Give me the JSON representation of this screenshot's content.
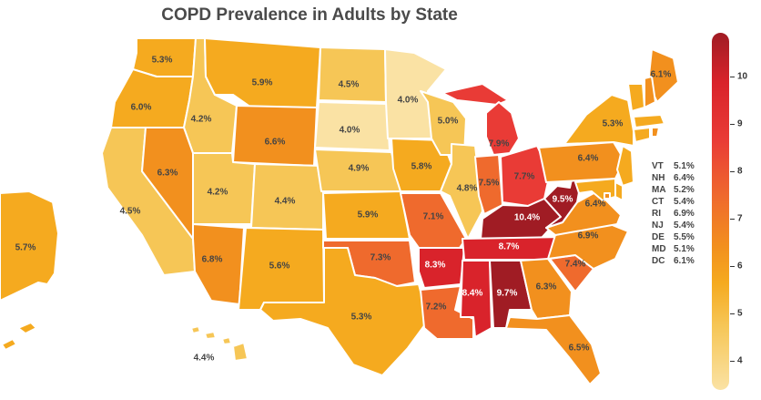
{
  "title": "COPD Prevalence in Adults by State",
  "legend": {
    "min": 4,
    "max": 10,
    "ticks": [
      "10",
      "9",
      "8",
      "7",
      "6",
      "5",
      "4"
    ]
  },
  "states": [
    {
      "id": "WA",
      "label": "5.3%",
      "value": 5.3
    },
    {
      "id": "OR",
      "label": "6.0%",
      "value": 6.0
    },
    {
      "id": "CA",
      "label": "4.5%",
      "value": 4.5
    },
    {
      "id": "ID",
      "label": "4.2%",
      "value": 4.2
    },
    {
      "id": "NV",
      "label": "6.3%",
      "value": 6.3
    },
    {
      "id": "MT",
      "label": "5.9%",
      "value": 5.9
    },
    {
      "id": "WY",
      "label": "6.6%",
      "value": 6.6
    },
    {
      "id": "UT",
      "label": "4.2%",
      "value": 4.2
    },
    {
      "id": "AZ",
      "label": "6.8%",
      "value": 6.8
    },
    {
      "id": "CO",
      "label": "4.4%",
      "value": 4.4
    },
    {
      "id": "NM",
      "label": "5.6%",
      "value": 5.6
    },
    {
      "id": "ND",
      "label": "4.5%",
      "value": 4.5
    },
    {
      "id": "SD",
      "label": "4.0%",
      "value": 4.0
    },
    {
      "id": "NE",
      "label": "4.9%",
      "value": 4.9
    },
    {
      "id": "KS",
      "label": "5.9%",
      "value": 5.9
    },
    {
      "id": "OK",
      "label": "7.3%",
      "value": 7.3
    },
    {
      "id": "TX",
      "label": "5.3%",
      "value": 5.3
    },
    {
      "id": "MN",
      "label": "4.0%",
      "value": 4.0
    },
    {
      "id": "IA",
      "label": "5.8%",
      "value": 5.8
    },
    {
      "id": "MO",
      "label": "7.1%",
      "value": 7.1
    },
    {
      "id": "AR",
      "label": "8.3%",
      "value": 8.3
    },
    {
      "id": "LA",
      "label": "7.2%",
      "value": 7.2
    },
    {
      "id": "WI",
      "label": "5.0%",
      "value": 5.0
    },
    {
      "id": "IL",
      "label": "4.8%",
      "value": 4.8
    },
    {
      "id": "MI",
      "label": "7.9%",
      "value": 7.9
    },
    {
      "id": "IN",
      "label": "7.5%",
      "value": 7.5
    },
    {
      "id": "OH",
      "label": "7.7%",
      "value": 7.7
    },
    {
      "id": "KY",
      "label": "10.4%",
      "value": 10.4
    },
    {
      "id": "TN",
      "label": "8.7%",
      "value": 8.7
    },
    {
      "id": "MS",
      "label": "8.4%",
      "value": 8.4
    },
    {
      "id": "AL",
      "label": "9.7%",
      "value": 9.7
    },
    {
      "id": "GA",
      "label": "6.3%",
      "value": 6.3
    },
    {
      "id": "FL",
      "label": "6.5%",
      "value": 6.5
    },
    {
      "id": "SC",
      "label": "7.4%",
      "value": 7.4
    },
    {
      "id": "NC",
      "label": "6.9%",
      "value": 6.9
    },
    {
      "id": "VA",
      "label": "6.4%",
      "value": 6.4
    },
    {
      "id": "WV",
      "label": "9.5%",
      "value": 9.5
    },
    {
      "id": "PA",
      "label": "6.4%",
      "value": 6.4
    },
    {
      "id": "NY",
      "label": "5.3%",
      "value": 5.3
    },
    {
      "id": "ME",
      "label": "6.1%",
      "value": 6.1
    },
    {
      "id": "AK",
      "label": "5.7%",
      "value": 5.7
    },
    {
      "id": "HI",
      "label": "4.4%",
      "value": 4.4
    }
  ],
  "small_states": [
    {
      "abbr": "VT",
      "label": "5.1%",
      "value": 5.1
    },
    {
      "abbr": "NH",
      "label": "6.4%",
      "value": 6.4
    },
    {
      "abbr": "MA",
      "label": "5.2%",
      "value": 5.2
    },
    {
      "abbr": "CT",
      "label": "5.4%",
      "value": 5.4
    },
    {
      "abbr": "RI",
      "label": "6.9%",
      "value": 6.9
    },
    {
      "abbr": "NJ",
      "label": "5.4%",
      "value": 5.4
    },
    {
      "abbr": "DE",
      "label": "5.5%",
      "value": 5.5
    },
    {
      "abbr": "MD",
      "label": "5.1%",
      "value": 5.1
    },
    {
      "abbr": "DC",
      "label": "6.1%",
      "value": 6.1
    }
  ]
}
